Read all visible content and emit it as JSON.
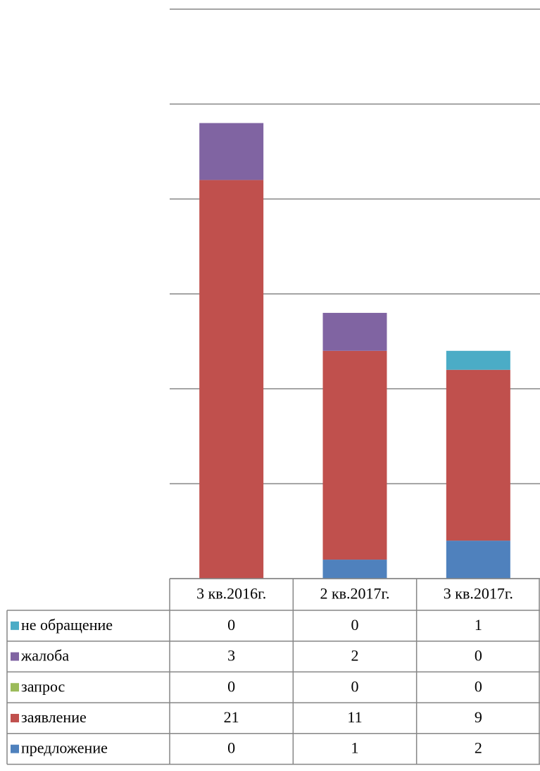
{
  "chart_data": {
    "type": "stacked_bar",
    "categories": [
      "3 кв.2016г.",
      "2 кв.2017г.",
      "3 кв.2017г."
    ],
    "series": [
      {
        "name": "не обращение",
        "color": "#4bacc6",
        "values": [
          0,
          0,
          1
        ]
      },
      {
        "name": "жалоба",
        "color": "#8064a2",
        "values": [
          3,
          2,
          0
        ]
      },
      {
        "name": "запрос",
        "color": "#9bbb59",
        "values": [
          0,
          0,
          0
        ]
      },
      {
        "name": "заявление",
        "color": "#c0504d",
        "values": [
          21,
          11,
          9
        ]
      },
      {
        "name": "предложение",
        "color": "#4f81bd",
        "values": [
          0,
          1,
          2
        ]
      }
    ],
    "ylim": [
      0,
      30
    ],
    "yticks": [
      0,
      5,
      10,
      15,
      20,
      25,
      30
    ],
    "grid": true
  }
}
